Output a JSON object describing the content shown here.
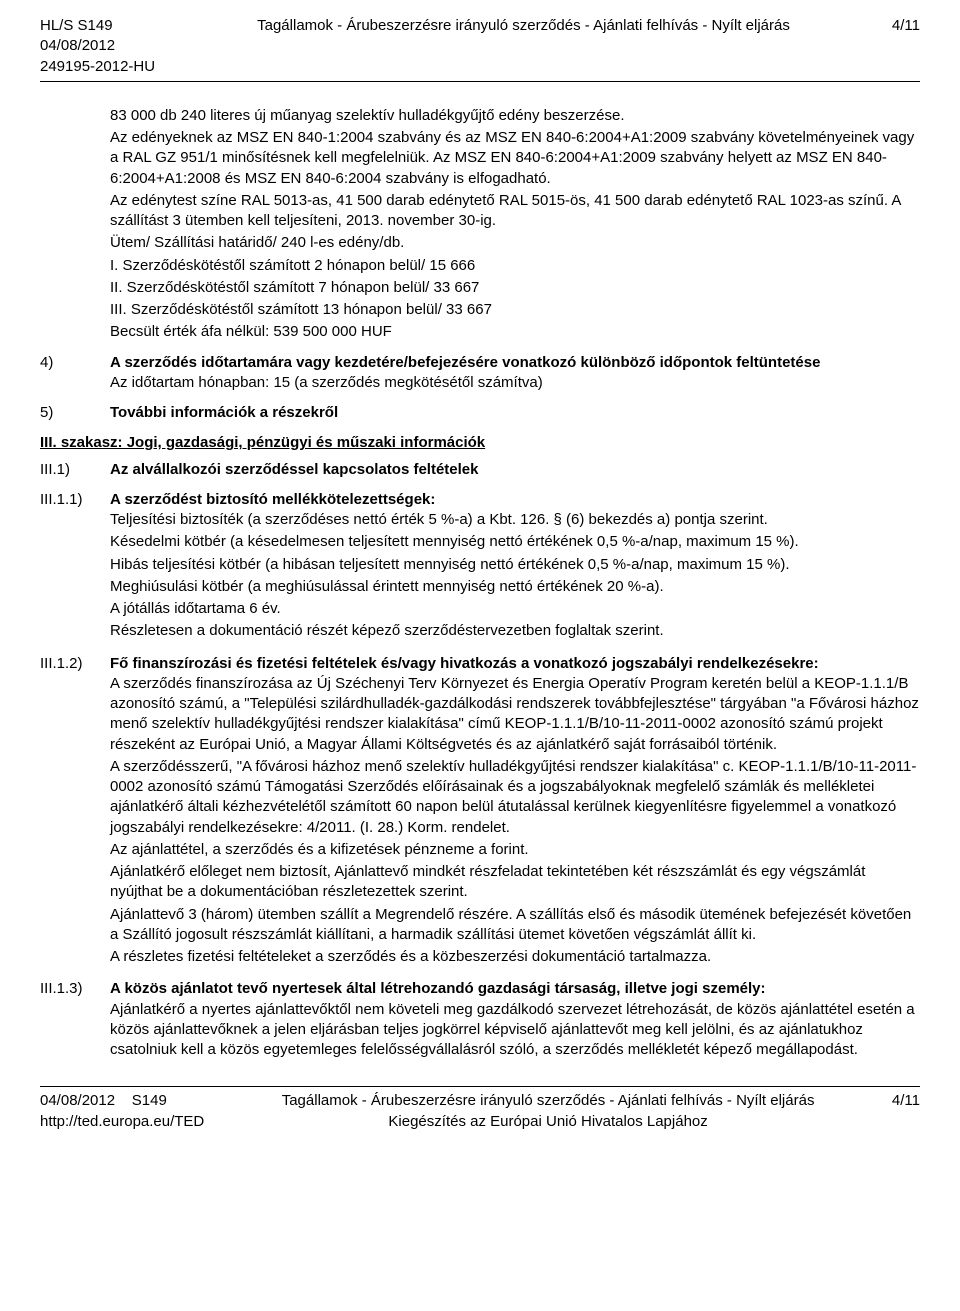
{
  "header": {
    "l1": "HL/S S149",
    "l2": "04/08/2012",
    "l3": "249195-2012-HU",
    "center": "Tagállamok - Árubeszerzésre irányuló szerződés - Ajánlati felhívás - Nyílt eljárás",
    "page": "4/11"
  },
  "body": {
    "intro": [
      "83 000 db 240 literes új műanyag szelektív hulladékgyűjtő edény beszerzése.",
      "Az edényeknek az MSZ EN 840-1:2004 szabvány és az MSZ EN 840-6:2004+A1:2009 szabvány követelményeinek vagy a RAL GZ 951/1 minősítésnek kell megfelelniük. Az MSZ EN 840-6:2004+A1:2009 szabvány helyett az MSZ EN 840-6:2004+A1:2008 és MSZ EN 840-6:2004 szabvány is elfogadható.",
      "Az edénytest színe RAL 5013-as, 41 500 darab edénytető RAL 5015-ös, 41 500 darab edénytető RAL 1023-as színű. A szállítást 3 ütemben kell teljesíteni, 2013. november 30-ig.",
      "Ütem/ Szállítási határidő/ 240 l-es edény/db.",
      "I. Szerződéskötéstől számított 2 hónapon belül/ 15 666",
      "II. Szerződéskötéstől számított 7 hónapon belül/ 33 667",
      "III. Szerződéskötéstől számított 13 hónapon belül/ 33 667",
      "Becsült érték áfa nélkül: 539 500 000 HUF"
    ],
    "item4": {
      "num": "4)",
      "title": "A szerződés időtartamára vagy kezdetére/befejezésére vonatkozó különböző időpontok feltüntetése",
      "line": "Az időtartam hónapban: 15 (a szerződés megkötésétől számítva)"
    },
    "item5": {
      "num": "5)",
      "title": "További információk a részekről"
    },
    "secIII": "III. szakasz: Jogi, gazdasági, pénzügyi és műszaki információk",
    "III1": {
      "num": "III.1)",
      "title": "Az alvállalkozói szerződéssel kapcsolatos feltételek"
    },
    "III11": {
      "num": "III.1.1)",
      "title": "A szerződést biztosító mellékkötelezettségek:",
      "lines": [
        "Teljesítési biztosíték (a szerződéses nettó érték 5 %-a) a Kbt. 126. § (6) bekezdés a) pontja szerint.",
        "Késedelmi kötbér (a késedelmesen teljesített mennyiség nettó értékének 0,5 %-a/nap, maximum 15 %).",
        "Hibás teljesítési kötbér (a hibásan teljesített mennyiség nettó értékének 0,5 %-a/nap, maximum 15 %).",
        "Meghiúsulási kötbér (a meghiúsulással érintett mennyiség nettó értékének 20 %-a).",
        "A jótállás időtartama 6 év.",
        "Részletesen a dokumentáció részét képező szerződéstervezetben foglaltak szerint."
      ]
    },
    "III12": {
      "num": "III.1.2)",
      "title": "Fő finanszírozási és fizetési feltételek és/vagy hivatkozás a vonatkozó jogszabályi rendelkezésekre:",
      "lines": [
        "A szerződés finanszírozása az Új Széchenyi Terv Környezet és Energia Operatív Program keretén belül a KEOP-1.1.1/B azonosító számú, a \"Települési szilárdhulladék-gazdálkodási rendszerek továbbfejlesztése\" tárgyában \"a Fővárosi házhoz menő szelektív hulladékgyűjtési rendszer kialakítása\" című KEOP-1.1.1/B/10-11-2011-0002 azonosító számú projekt részeként az Európai Unió, a Magyar Állami Költségvetés és az ajánlatkérő saját forrásaiból történik.",
        "A szerződésszerű, \"A fővárosi házhoz menő szelektív hulladékgyűjtési rendszer kialakítása\" c. KEOP-1.1.1/B/10-11-2011-0002 azonosító számú Támogatási Szerződés előírásainak és a jogszabályoknak megfelelő számlák és mellékletei ajánlatkérő általi kézhezvételétől számított 60 napon belül átutalással kerülnek kiegyenlítésre figyelemmel a vonatkozó jogszabályi rendelkezésekre: 4/2011. (I. 28.) Korm. rendelet.",
        "Az ajánlattétel, a szerződés és a kifizetések pénzneme a forint.",
        "Ajánlatkérő előleget nem biztosít, Ajánlattevő mindkét részfeladat tekintetében két részszámlát és egy végszámlát nyújthat be a dokumentációban részletezettek szerint.",
        "Ajánlattevő 3 (három) ütemben szállít a Megrendelő részére. A szállítás első és második ütemének befejezését követően a Szállító jogosult részszámlát kiállítani, a harmadik szállítási ütemet követően végszámlát állít ki.",
        "A részletes fizetési feltételeket a szerződés és a közbeszerzési dokumentáció tartalmazza."
      ]
    },
    "III13": {
      "num": "III.1.3)",
      "title": "A közös ajánlatot tevő nyertesek által létrehozandó gazdasági társaság, illetve jogi személy:",
      "lines": [
        "Ajánlatkérő a nyertes ajánlattevőktől nem követeli meg gazdálkodó szervezet létrehozását, de közös ajánlattétel esetén a közös ajánlattevőknek a jelen eljárásban teljes jogkörrel képviselő ajánlattevőt meg kell jelölni, és az ajánlatukhoz csatolniuk kell a közös egyetemleges felelősségvállalásról szóló, a szerződés mellékletét képező megállapodást."
      ]
    }
  },
  "footer": {
    "l1": "04/08/2012",
    "l2": "S149",
    "url": "http://ted.europa.eu/TED",
    "c1": "Tagállamok - Árubeszerzésre irányuló szerződés - Ajánlati felhívás - Nyílt eljárás",
    "c2": "Kiegészítés az Európai Unió Hivatalos Lapjához",
    "page": "4/11"
  }
}
